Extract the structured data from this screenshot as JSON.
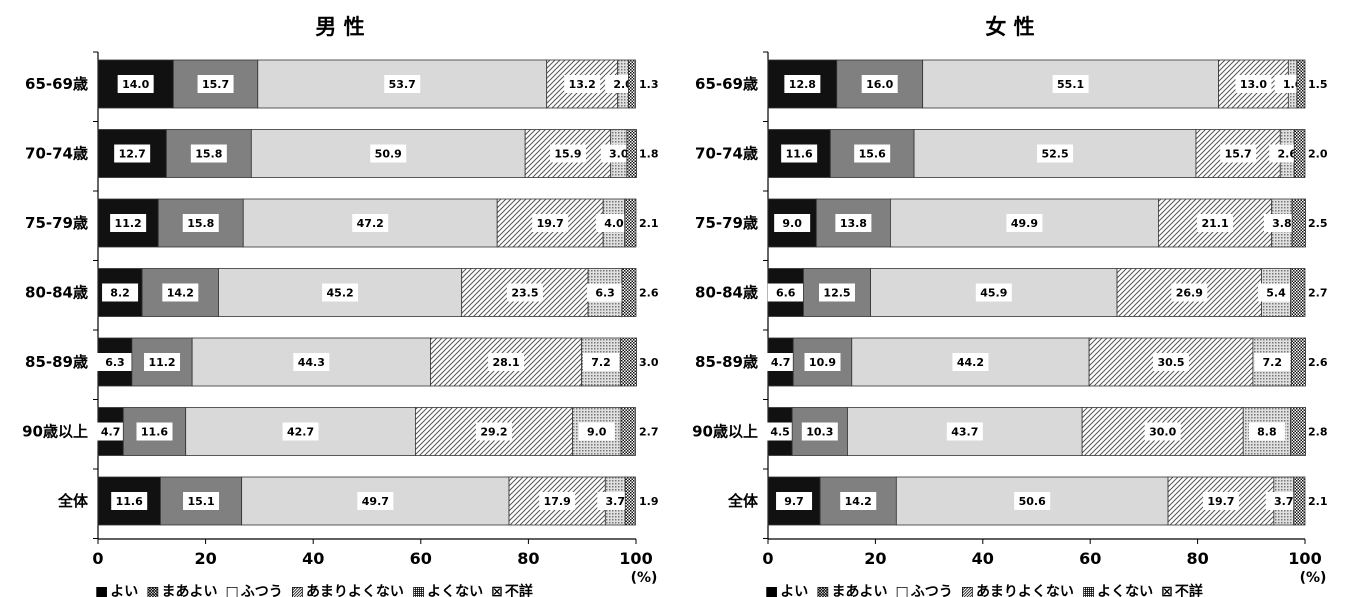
{
  "chart_data": [
    {
      "type": "bar",
      "orientation": "horizontal",
      "stacked": true,
      "title": "男 性",
      "categories": [
        "65-69歳",
        "70-74歳",
        "75-79歳",
        "80-84歳",
        "85-89歳",
        "90歳以上",
        "全体"
      ],
      "series": [
        {
          "name": "よい",
          "values": [
            14.0,
            12.7,
            11.2,
            8.2,
            6.3,
            4.7,
            11.6
          ]
        },
        {
          "name": "まあよい",
          "values": [
            15.7,
            15.8,
            15.8,
            14.2,
            11.2,
            11.6,
            15.1
          ]
        },
        {
          "name": "ふつう",
          "values": [
            53.7,
            50.9,
            47.2,
            45.2,
            44.3,
            42.7,
            49.7
          ]
        },
        {
          "name": "あまりよくない",
          "values": [
            13.2,
            15.9,
            19.7,
            23.5,
            28.1,
            29.2,
            17.9
          ]
        },
        {
          "name": "よくない",
          "values": [
            2.0,
            3.0,
            4.0,
            6.3,
            7.2,
            9.0,
            3.7
          ]
        },
        {
          "name": "不詳",
          "values": [
            1.3,
            1.8,
            2.1,
            2.6,
            3.0,
            2.7,
            1.9
          ]
        }
      ],
      "xlim": [
        0,
        100
      ],
      "xticks": [
        "0",
        "20",
        "40",
        "60",
        "80",
        "100"
      ],
      "unit": "(%)",
      "legend": "bottom"
    },
    {
      "type": "bar",
      "orientation": "horizontal",
      "stacked": true,
      "title": "女 性",
      "categories": [
        "65-69歳",
        "70-74歳",
        "75-79歳",
        "80-84歳",
        "85-89歳",
        "90歳以上",
        "全体"
      ],
      "series": [
        {
          "name": "よい",
          "values": [
            12.8,
            11.6,
            9.0,
            6.6,
            4.7,
            4.5,
            9.7
          ]
        },
        {
          "name": "まあよい",
          "values": [
            16.0,
            15.6,
            13.8,
            12.5,
            10.9,
            10.3,
            14.2
          ]
        },
        {
          "name": "ふつう",
          "values": [
            55.1,
            52.5,
            49.9,
            45.9,
            44.2,
            43.7,
            50.6
          ]
        },
        {
          "name": "あまりよくない",
          "values": [
            13.0,
            15.7,
            21.1,
            26.9,
            30.5,
            30.0,
            19.7
          ]
        },
        {
          "name": "よくない",
          "values": [
            1.6,
            2.6,
            3.8,
            5.4,
            7.2,
            8.8,
            3.7
          ]
        },
        {
          "name": "不詳",
          "values": [
            1.5,
            2.0,
            2.5,
            2.7,
            2.6,
            2.8,
            2.1
          ]
        }
      ],
      "xlim": [
        0,
        100
      ],
      "xticks": [
        "0",
        "20",
        "40",
        "60",
        "80",
        "100"
      ],
      "unit": "(%)",
      "legend": "bottom"
    }
  ],
  "legend_symbols": [
    "■",
    "▩",
    "□",
    "▨",
    "▦",
    "⊠"
  ],
  "series_fills": [
    "#111111",
    "#808080",
    "#d9d9d9",
    "pattern-diag",
    "pattern-grid",
    "pattern-check"
  ]
}
